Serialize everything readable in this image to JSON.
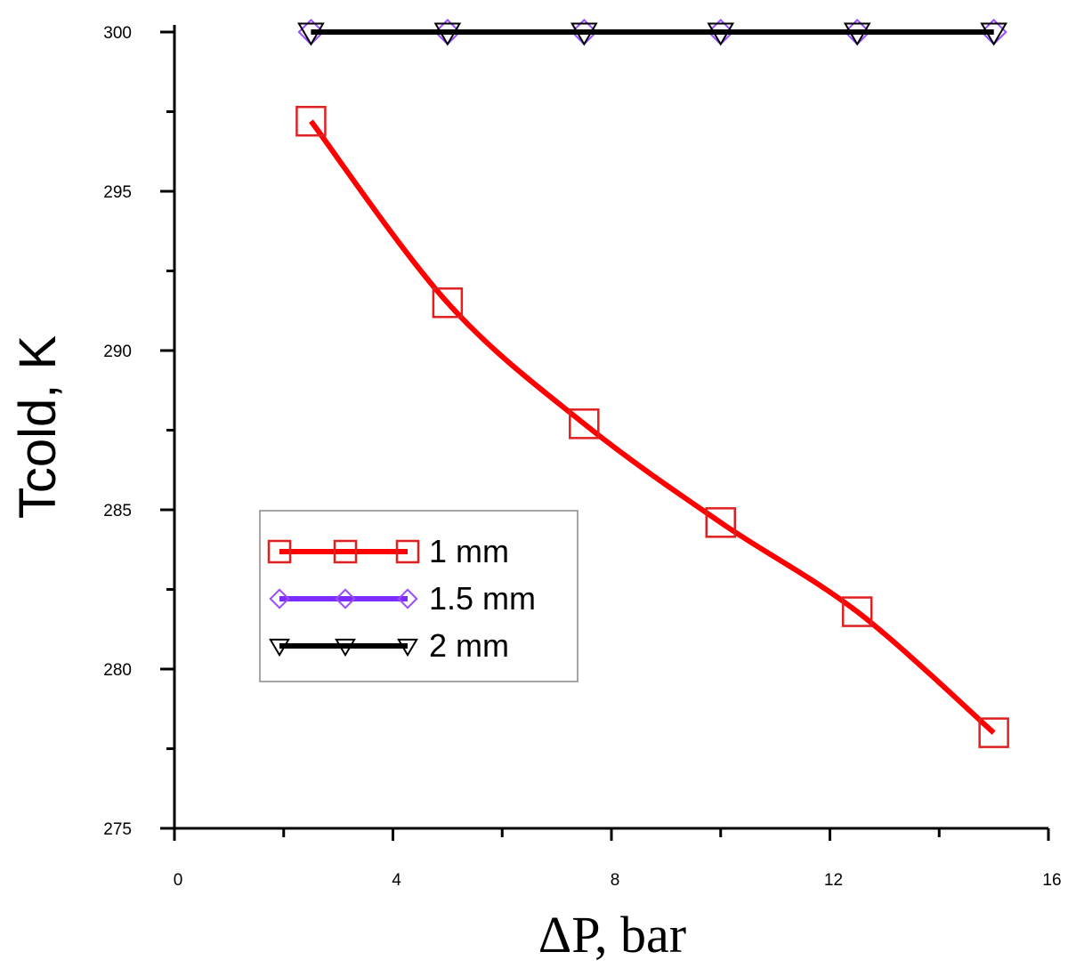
{
  "chart_data": {
    "type": "line",
    "title": "",
    "xlabel": "ΔP, bar",
    "ylabel": "Tcold, K",
    "xlim": [
      0,
      16
    ],
    "ylim": [
      275,
      300
    ],
    "xticks": [
      0,
      4,
      8,
      12,
      16
    ],
    "yticks": [
      275,
      280,
      285,
      290,
      295,
      300
    ],
    "grid": false,
    "legend_position": "center-left",
    "series": [
      {
        "name": "1 mm",
        "color": "#ff0000",
        "marker": "square",
        "marker_color": "#e02020",
        "x": [
          2.5,
          5,
          7.5,
          10,
          12.5,
          15
        ],
        "y": [
          297.2,
          291.5,
          287.7,
          284.6,
          281.8,
          278.0
        ]
      },
      {
        "name": "1.5 mm",
        "color": "#7b2cff",
        "marker": "diamond",
        "marker_color": "#9a4dff",
        "x": [
          2.5,
          5,
          7.5,
          10,
          12.5,
          15
        ],
        "y": [
          300,
          300,
          300,
          300,
          300,
          300
        ]
      },
      {
        "name": "2 mm",
        "color": "#000000",
        "marker": "triangle-down",
        "marker_color": "#000000",
        "x": [
          2.5,
          5,
          7.5,
          10,
          12.5,
          15
        ],
        "y": [
          300,
          300,
          300,
          300,
          300,
          300
        ]
      }
    ]
  }
}
